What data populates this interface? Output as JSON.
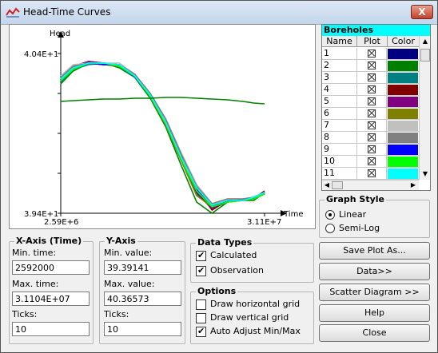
{
  "window": {
    "title": "Head-Time Curves",
    "close_label": "X"
  },
  "chart_data": {
    "type": "line",
    "title": "",
    "xlabel": "Time",
    "ylabel": "Head",
    "xlim": [
      2592000,
      31104000
    ],
    "ylim": [
      39.39141,
      40.36573
    ],
    "tick_labels": {
      "x_min": "2.59E+6",
      "x_max": "3.11E+7",
      "y_min": "3.94E+1",
      "y_max": "4.04E+1"
    },
    "x": [
      2592000,
      4320000,
      6480000,
      8640000,
      10800000,
      12960000,
      15120000,
      17280000,
      19440000,
      21600000,
      23760000,
      25920000,
      28080000,
      29592000,
      31104000
    ],
    "series": [
      {
        "color": "#000080",
        "values": [
          40.24,
          40.31,
          40.34,
          40.33,
          40.33,
          40.26,
          40.13,
          39.96,
          39.74,
          39.56,
          39.45,
          39.48,
          39.48,
          39.5,
          39.53
        ]
      },
      {
        "color": "#008000",
        "values": [
          40.21,
          40.29,
          40.34,
          40.34,
          40.31,
          40.25,
          40.12,
          39.94,
          39.7,
          39.47,
          39.4,
          39.47,
          39.48,
          39.48,
          39.53
        ]
      },
      {
        "color": "#008080",
        "values": [
          40.22,
          40.3,
          40.33,
          40.34,
          40.32,
          40.25,
          40.13,
          39.96,
          39.73,
          39.52,
          39.43,
          39.47,
          39.49,
          39.49,
          39.53
        ]
      },
      {
        "color": "#800000",
        "values": [
          40.25,
          40.32,
          40.35,
          40.34,
          40.33,
          40.27,
          40.14,
          39.97,
          39.76,
          39.55,
          39.42,
          39.48,
          39.48,
          39.49,
          39.54
        ]
      },
      {
        "color": "#800080",
        "values": [
          40.24,
          40.31,
          40.35,
          40.34,
          40.33,
          40.26,
          40.13,
          39.95,
          39.74,
          39.53,
          39.43,
          39.48,
          39.48,
          39.5,
          39.53
        ]
      },
      {
        "color": "#808000",
        "values": [
          40.23,
          40.31,
          40.34,
          40.33,
          40.32,
          40.26,
          40.13,
          39.95,
          39.73,
          39.51,
          39.44,
          39.47,
          39.48,
          39.49,
          39.52
        ]
      },
      {
        "color": "#c0c0c0",
        "values": [
          40.26,
          40.33,
          40.34,
          40.34,
          40.34,
          40.27,
          40.15,
          39.99,
          39.78,
          39.58,
          39.46,
          39.49,
          39.49,
          39.5,
          39.52
        ]
      },
      {
        "color": "#808080",
        "values": [
          40.25,
          40.32,
          40.34,
          40.33,
          40.33,
          40.27,
          40.15,
          39.99,
          39.77,
          39.57,
          39.46,
          39.49,
          39.49,
          39.5,
          39.53
        ]
      },
      {
        "color": "#0000ff",
        "values": [
          40.24,
          40.31,
          40.34,
          40.33,
          40.33,
          40.26,
          40.14,
          39.97,
          39.75,
          39.55,
          39.44,
          39.48,
          39.48,
          39.5,
          39.53
        ]
      },
      {
        "color": "#00ff00",
        "values": [
          40.23,
          40.3,
          40.34,
          40.34,
          40.32,
          40.26,
          40.13,
          39.96,
          39.74,
          39.54,
          39.44,
          39.47,
          39.48,
          39.49,
          39.52
        ]
      },
      {
        "color": "#00ffff",
        "values": [
          40.24,
          40.31,
          40.34,
          40.34,
          40.33,
          40.26,
          40.14,
          39.97,
          39.75,
          39.56,
          39.45,
          39.48,
          39.48,
          39.5,
          39.53
        ]
      },
      {
        "color": "#008000",
        "values": [
          40.1,
          40.105,
          40.11,
          40.115,
          40.115,
          40.12,
          40.12,
          40.125,
          40.125,
          40.12,
          40.115,
          40.11,
          40.1,
          40.09,
          40.085
        ]
      }
    ]
  },
  "boreholes": {
    "title": "Boreholes",
    "columns": [
      "Name",
      "Plot",
      "Color"
    ],
    "rows": [
      {
        "name": "1",
        "color": "#000080"
      },
      {
        "name": "2",
        "color": "#008000"
      },
      {
        "name": "3",
        "color": "#008080"
      },
      {
        "name": "4",
        "color": "#800000"
      },
      {
        "name": "5",
        "color": "#800080"
      },
      {
        "name": "6",
        "color": "#808000"
      },
      {
        "name": "7",
        "color": "#c0c0c0"
      },
      {
        "name": "8",
        "color": "#808080"
      },
      {
        "name": "9",
        "color": "#0000ff"
      },
      {
        "name": "10",
        "color": "#00ff00"
      },
      {
        "name": "11",
        "color": "#00ffff"
      }
    ]
  },
  "xaxis": {
    "title": "X-Axis (Time)",
    "min_label": "Min. time:",
    "min_value": "2592000",
    "max_label": "Max. time:",
    "max_value": "3.1104E+07",
    "ticks_label": "Ticks:",
    "ticks_value": "10"
  },
  "yaxis": {
    "title": "Y-Axis",
    "min_label": "Min. value:",
    "min_value": "39.39141",
    "max_label": "Max. value:",
    "max_value": "40.36573",
    "ticks_label": "Ticks:",
    "ticks_value": "10"
  },
  "data_types": {
    "title": "Data Types",
    "calculated": "Calculated",
    "observation": "Observation"
  },
  "options": {
    "title": "Options",
    "hgrid": "Draw horizontal grid",
    "vgrid": "Draw vertical grid",
    "auto": "Auto Adjust Min/Max"
  },
  "graph_style": {
    "title": "Graph Style",
    "linear": "Linear",
    "semilog": "Semi-Log"
  },
  "buttons": {
    "save": "Save Plot As...",
    "data": "Data>>",
    "scatter": "Scatter Diagram >>",
    "help": "Help",
    "close": "Close"
  }
}
